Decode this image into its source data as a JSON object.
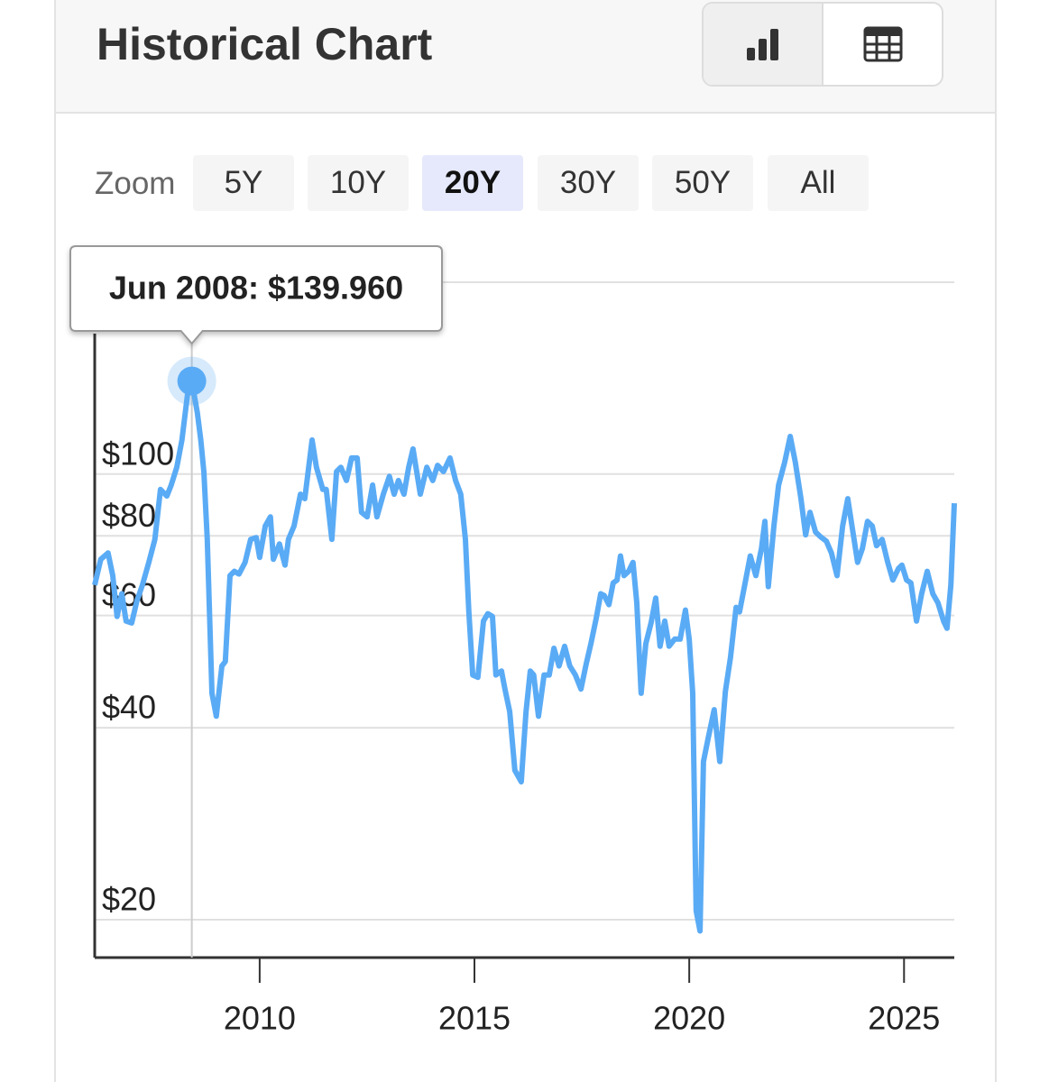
{
  "header": {
    "title": "Historical Chart"
  },
  "zoom": {
    "label": "Zoom",
    "options": [
      "5Y",
      "10Y",
      "20Y",
      "30Y",
      "50Y",
      "All"
    ],
    "selected": 2
  },
  "chart_data": {
    "type": "line",
    "log_y": true,
    "color": "#5aabf5",
    "grid": true,
    "xlim": [
      2006.16,
      2026.17
    ],
    "xticks": [
      2010,
      2015,
      2020,
      2025
    ],
    "ylim": [
      17.44,
      210
    ],
    "yticks": [
      {
        "value": 20,
        "label": "$20"
      },
      {
        "value": 40,
        "label": "$40"
      },
      {
        "value": 60,
        "label": "$60"
      },
      {
        "value": 80,
        "label": "$80"
      },
      {
        "value": 100,
        "label": "$100"
      },
      {
        "value": 200
      }
    ],
    "highlight": {
      "x": 2008.42,
      "value": 139.96,
      "label": "Jun 2008: $139.960"
    },
    "x": [
      2006.16,
      2006.3,
      2006.47,
      2006.58,
      2006.68,
      2006.79,
      2006.89,
      2007.02,
      2007.14,
      2007.27,
      2007.42,
      2007.56,
      2007.69,
      2007.84,
      2007.94,
      2008.07,
      2008.19,
      2008.32,
      2008.42,
      2008.55,
      2008.63,
      2008.7,
      2008.78,
      2008.89,
      2008.99,
      2009.12,
      2009.2,
      2009.31,
      2009.41,
      2009.52,
      2009.66,
      2009.79,
      2009.92,
      2010.0,
      2010.13,
      2010.25,
      2010.32,
      2010.46,
      2010.59,
      2010.67,
      2010.8,
      2010.95,
      2011.05,
      2011.22,
      2011.32,
      2011.47,
      2011.55,
      2011.68,
      2011.79,
      2011.89,
      2012.02,
      2012.14,
      2012.27,
      2012.37,
      2012.5,
      2012.63,
      2012.73,
      2012.88,
      2013.02,
      2013.13,
      2013.23,
      2013.36,
      2013.47,
      2013.57,
      2013.74,
      2013.89,
      2014.03,
      2014.14,
      2014.28,
      2014.43,
      2014.56,
      2014.68,
      2014.79,
      2014.87,
      2014.96,
      2015.08,
      2015.21,
      2015.31,
      2015.42,
      2015.5,
      2015.63,
      2015.71,
      2015.82,
      2015.94,
      2016.09,
      2016.2,
      2016.3,
      2016.38,
      2016.49,
      2016.62,
      2016.74,
      2016.85,
      2016.97,
      2017.1,
      2017.22,
      2017.35,
      2017.48,
      2017.6,
      2017.71,
      2017.83,
      2017.94,
      2018.02,
      2018.13,
      2018.23,
      2018.32,
      2018.4,
      2018.48,
      2018.59,
      2018.69,
      2018.78,
      2018.88,
      2018.99,
      2019.11,
      2019.22,
      2019.32,
      2019.43,
      2019.53,
      2019.66,
      2019.79,
      2019.91,
      2020.0,
      2020.08,
      2020.16,
      2020.25,
      2020.33,
      2020.44,
      2020.58,
      2020.71,
      2020.84,
      2020.96,
      2021.09,
      2021.17,
      2021.3,
      2021.42,
      2021.55,
      2021.68,
      2021.76,
      2021.84,
      2021.97,
      2022.08,
      2022.22,
      2022.35,
      2022.47,
      2022.6,
      2022.71,
      2022.81,
      2022.94,
      2023.06,
      2023.19,
      2023.31,
      2023.44,
      2023.57,
      2023.69,
      2023.82,
      2023.92,
      2024.03,
      2024.15,
      2024.26,
      2024.36,
      2024.49,
      2024.62,
      2024.74,
      2024.87,
      2024.95,
      2025.06,
      2025.16,
      2025.29,
      2025.41,
      2025.54,
      2025.67,
      2025.79,
      2025.92,
      2026.0,
      2026.09,
      2026.17
    ],
    "values": [
      67.0,
      73.5,
      75.2,
      69.3,
      59.8,
      64.9,
      58.8,
      58.4,
      63.2,
      67.0,
      72.7,
      79.0,
      94.6,
      92.4,
      96.1,
      102.5,
      113.1,
      133.3,
      139.96,
      124.8,
      113.1,
      100.9,
      79.0,
      45.3,
      41.7,
      50.0,
      50.8,
      69.3,
      70.4,
      69.7,
      72.7,
      79.0,
      79.5,
      74.0,
      82.9,
      85.7,
      73.5,
      77.7,
      72.0,
      79.0,
      82.9,
      93.0,
      91.5,
      113.1,
      102.5,
      94.6,
      94.6,
      79.0,
      100.9,
      102.5,
      97.7,
      106.0,
      106.0,
      87.1,
      85.7,
      96.1,
      85.7,
      93.0,
      99.2,
      93.0,
      97.7,
      93.0,
      102.5,
      109.5,
      93.0,
      102.5,
      97.7,
      103.2,
      100.9,
      106.0,
      97.7,
      93.0,
      79.0,
      60.8,
      48.4,
      48.0,
      58.8,
      60.4,
      59.8,
      48.4,
      49.1,
      46.0,
      42.4,
      34.3,
      32.9,
      42.4,
      49.1,
      48.4,
      41.7,
      48.4,
      48.4,
      53.3,
      50.0,
      53.7,
      50.0,
      48.4,
      46.0,
      50.3,
      54.2,
      59.2,
      64.9,
      64.5,
      62.4,
      67.5,
      68.2,
      74.4,
      69.3,
      70.4,
      72.7,
      62.8,
      45.3,
      54.2,
      58.4,
      63.9,
      53.7,
      58.8,
      53.7,
      55.1,
      55.1,
      61.2,
      55.1,
      45.3,
      20.66,
      19.2,
      35.4,
      38.5,
      42.7,
      35.4,
      45.6,
      51.6,
      61.8,
      60.8,
      67.5,
      74.4,
      69.3,
      76.4,
      84.3,
      66.6,
      82.9,
      96.1,
      104.3,
      114.6,
      104.3,
      91.5,
      80.3,
      87.1,
      81.1,
      79.7,
      78.5,
      75.2,
      69.3,
      82.9,
      91.5,
      80.3,
      72.7,
      76.4,
      84.3,
      82.9,
      77.2,
      79.0,
      72.7,
      68.2,
      71.1,
      72.0,
      68.2,
      67.5,
      58.8,
      64.9,
      70.4,
      64.9,
      62.8,
      58.8,
      57.3,
      67.0,
      90.0
    ]
  }
}
